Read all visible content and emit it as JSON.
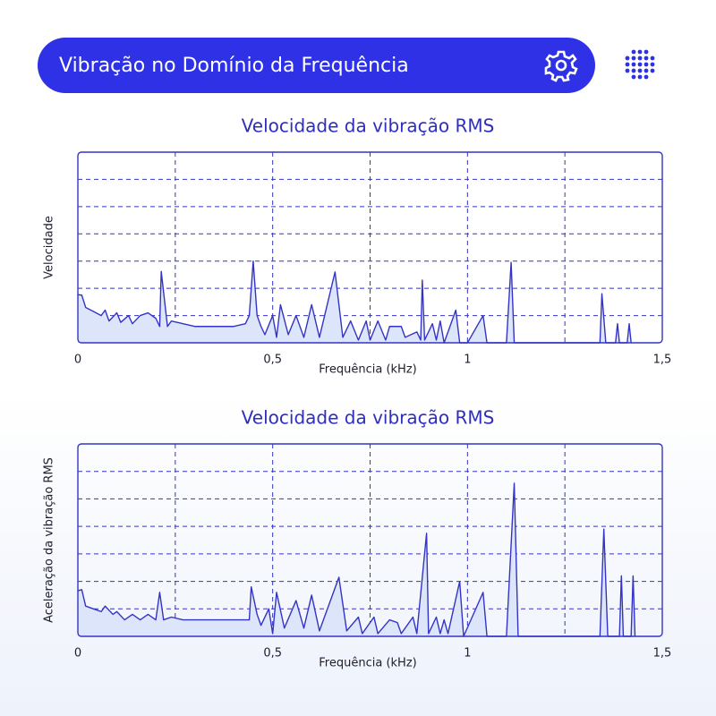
{
  "header": {
    "title": "Vibração no Domínio da Frequência"
  },
  "chart_data": [
    {
      "type": "line",
      "title": "Velocidade da vibração RMS",
      "x_label": "Frequência (kHz)",
      "y_label": "Velocidade",
      "color": "#3434c4",
      "fill_color": "#dde5fa",
      "grid": true,
      "xlim": [
        0,
        1.5
      ],
      "xticks": [
        0,
        {
          "value": 0.5,
          "label": "0,5"
        },
        1,
        {
          "value": 1.5,
          "label": "1,5"
        }
      ],
      "x_minor_ticks": [
        0.25,
        0.75,
        1.25
      ],
      "ylim": [
        0,
        7
      ],
      "yticks": [
        1,
        2,
        3,
        4,
        5,
        6
      ],
      "x": [
        0,
        0.01,
        0.02,
        0.04,
        0.06,
        0.07,
        0.08,
        0.1,
        0.11,
        0.13,
        0.14,
        0.16,
        0.18,
        0.2,
        0.21,
        0.214,
        0.23,
        0.24,
        0.27,
        0.3,
        0.35,
        0.4,
        0.43,
        0.44,
        0.45,
        0.46,
        0.47,
        0.48,
        0.5,
        0.51,
        0.52,
        0.54,
        0.56,
        0.58,
        0.6,
        0.62,
        0.66,
        0.68,
        0.7,
        0.72,
        0.74,
        0.75,
        0.77,
        0.79,
        0.8,
        0.83,
        0.84,
        0.87,
        0.88,
        0.884,
        0.89,
        0.91,
        0.92,
        0.93,
        0.94,
        0.97,
        0.98,
        1.0,
        1.04,
        1.05,
        1.1,
        1.112,
        1.12,
        1.34,
        1.345,
        1.355,
        1.38,
        1.385,
        1.39,
        1.41,
        1.415,
        1.42
      ],
      "values": [
        1.77,
        1.75,
        1.3,
        1.15,
        1.0,
        1.2,
        0.8,
        1.1,
        0.75,
        1.0,
        0.7,
        1.0,
        1.1,
        0.9,
        0.6,
        2.62,
        0.6,
        0.8,
        0.7,
        0.6,
        0.6,
        0.6,
        0.7,
        1.0,
        3.0,
        1.0,
        0.6,
        0.3,
        1.0,
        0.2,
        1.4,
        0.3,
        1.0,
        0.2,
        1.4,
        0.2,
        2.6,
        0.2,
        0.8,
        0.1,
        0.8,
        0.1,
        0.8,
        0.1,
        0.6,
        0.6,
        0.2,
        0.4,
        0.1,
        2.3,
        0.1,
        0.7,
        0.1,
        0.8,
        0,
        1.2,
        0,
        0,
        1.0,
        0,
        0,
        2.95,
        0,
        0,
        1.8,
        0,
        0,
        0.7,
        0,
        0,
        0.7,
        0
      ]
    },
    {
      "type": "line",
      "title": "Velocidade da vibração RMS",
      "x_label": "Frequência (kHz)",
      "y_label": "Aceleração da vibração RMS",
      "color": "#3434c4",
      "fill_color": "#dde5fa",
      "grid": true,
      "xlim": [
        0,
        1.5
      ],
      "xticks": [
        0,
        {
          "value": 0.5,
          "label": "0,5"
        },
        1,
        {
          "value": 1.5,
          "label": "1,5"
        }
      ],
      "x_minor_ticks": [
        0.25,
        0.75,
        1.25
      ],
      "ylim": [
        0,
        7
      ],
      "yticks": [
        1,
        2,
        3,
        4,
        5,
        6
      ],
      "x": [
        0,
        0.01,
        0.02,
        0.04,
        0.06,
        0.07,
        0.09,
        0.1,
        0.12,
        0.14,
        0.16,
        0.18,
        0.2,
        0.21,
        0.22,
        0.24,
        0.27,
        0.3,
        0.35,
        0.44,
        0.445,
        0.46,
        0.47,
        0.49,
        0.5,
        0.51,
        0.53,
        0.56,
        0.58,
        0.6,
        0.62,
        0.67,
        0.69,
        0.72,
        0.73,
        0.76,
        0.77,
        0.8,
        0.82,
        0.83,
        0.86,
        0.87,
        0.895,
        0.9,
        0.92,
        0.93,
        0.94,
        0.95,
        0.98,
        0.99,
        1.04,
        1.05,
        1.1,
        1.12,
        1.13,
        1.34,
        1.35,
        1.36,
        1.39,
        1.395,
        1.4,
        1.42,
        1.425,
        1.43
      ],
      "values": [
        1.66,
        1.7,
        1.1,
        1.0,
        0.9,
        1.1,
        0.8,
        0.9,
        0.6,
        0.8,
        0.6,
        0.8,
        0.6,
        1.6,
        0.6,
        0.7,
        0.6,
        0.6,
        0.6,
        0.6,
        1.8,
        0.8,
        0.4,
        1.0,
        0.1,
        1.6,
        0.3,
        1.3,
        0.3,
        1.5,
        0.2,
        2.15,
        0.2,
        0.7,
        0.1,
        0.7,
        0.1,
        0.6,
        0.5,
        0.1,
        0.7,
        0.1,
        3.75,
        0.1,
        0.7,
        0.1,
        0.6,
        0.1,
        2.0,
        0,
        1.6,
        0,
        0,
        5.57,
        0,
        0,
        3.9,
        0,
        0,
        2.2,
        0,
        0,
        2.2,
        0
      ]
    }
  ]
}
